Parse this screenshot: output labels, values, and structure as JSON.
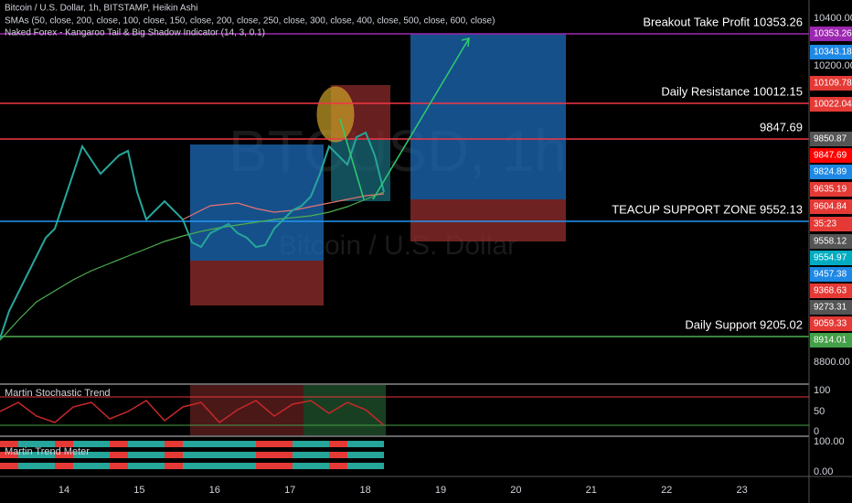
{
  "header": {
    "symbol_line": "Bitcoin / U.S. Dollar, 1h, BITSTAMP, Heikin Ashi",
    "sma_line": "SMAs (50, close, 200, close, 100, close, 150, close, 200, close, 250, close, 300, close, 400, close, 500, close, 600, close)",
    "indicator_line": "Naked Forex - Kangaroo Tail & Big Shadow Indicator (14, 3, 0.1)"
  },
  "watermark": {
    "symbol": "BTCUSD, 1h",
    "name": "Bitcoin / U.S. Dollar"
  },
  "levels": [
    {
      "label": "Breakout Take Profit 10353.26",
      "color": "#9c27b0"
    },
    {
      "label": "Daily Resistance 10012.15",
      "color": "#f23645"
    },
    {
      "label": "9847.69",
      "color": "#f23645"
    },
    {
      "label": "TEACUP SUPPORT ZONE 9552.13",
      "color": "#2196f3"
    },
    {
      "label": "Daily Support 9205.02",
      "color": "#4caf50"
    }
  ],
  "price_axis": {
    "ticks": [
      "10400.00",
      "10200.00",
      "8800.00"
    ],
    "tags": [
      {
        "text": "10353.26",
        "color": "#9c27b0"
      },
      {
        "text": "10343.18",
        "color": "#1e88e5"
      },
      {
        "text": "10109.78",
        "color": "#e53935"
      },
      {
        "text": "10022.04",
        "color": "#e53935"
      },
      {
        "text": "9850.87",
        "color": "#555555"
      },
      {
        "text": "9847.69",
        "color": "#ff0000"
      },
      {
        "text": "9824.89",
        "color": "#1e88e5"
      },
      {
        "text": "9635.19",
        "color": "#e53935"
      },
      {
        "text": "9604.84",
        "color": "#e53935"
      },
      {
        "text": "35:23",
        "color": "#e53935"
      },
      {
        "text": "9558.12",
        "color": "#555555"
      },
      {
        "text": "9554.97",
        "color": "#00acc1"
      },
      {
        "text": "9457.38",
        "color": "#1e88e5"
      },
      {
        "text": "9368.63",
        "color": "#e53935"
      },
      {
        "text": "9273.31",
        "color": "#555555"
      },
      {
        "text": "9059.33",
        "color": "#e53935"
      },
      {
        "text": "8914.01",
        "color": "#43a047"
      }
    ]
  },
  "time_axis": [
    "14",
    "15",
    "16",
    "17",
    "18",
    "19",
    "20",
    "21",
    "22",
    "23"
  ],
  "panes": [
    {
      "title": "Martin Stochastic Trend",
      "ticks": [
        "100",
        "50",
        "0"
      ]
    },
    {
      "title": "Martin Trend Meter",
      "ticks": [
        "100.00",
        "0.00"
      ]
    }
  ]
}
